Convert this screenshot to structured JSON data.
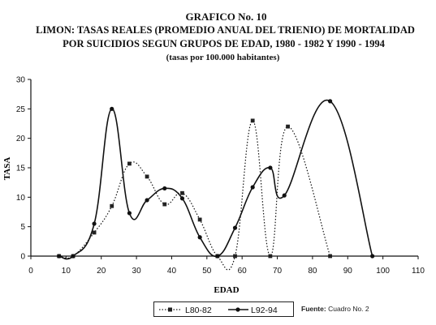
{
  "chart_data": {
    "type": "line",
    "title": "GRAFICO No. 10",
    "subtitle_line1": "LIMON: TASAS REALES (PROMEDIO ANUAL DEL TRIENIO) DE MORTALIDAD",
    "subtitle_line2": "POR SUICIDIOS SEGUN GRUPOS DE EDAD, 1980 - 1982 Y 1990 - 1994",
    "subtitle_line3": "(tasas por 100.000 habitantes)",
    "xlabel": "EDAD",
    "ylabel": "TASA",
    "xlim": [
      0,
      110
    ],
    "ylim": [
      0,
      30
    ],
    "xticks": [
      0,
      10,
      20,
      30,
      40,
      50,
      60,
      70,
      80,
      90,
      100,
      110
    ],
    "yticks": [
      0,
      5,
      10,
      15,
      20,
      25,
      30
    ],
    "grid": false,
    "legend_position": "bottom-center",
    "series": [
      {
        "name": "L80-82",
        "style": "dotted-square",
        "x": [
          8,
          12,
          18,
          23,
          28,
          33,
          38,
          43,
          48,
          53,
          58,
          63,
          68,
          73,
          85
        ],
        "y": [
          0,
          0,
          4,
          8.5,
          15.7,
          13.5,
          8.8,
          10.7,
          6.2,
          0,
          0,
          23,
          0,
          22,
          0
        ]
      },
      {
        "name": "L92-94",
        "style": "solid-circle",
        "x": [
          8,
          12,
          18,
          23,
          28,
          33,
          38,
          43,
          48,
          53,
          58,
          63,
          68,
          72,
          85,
          97
        ],
        "y": [
          0,
          0,
          5.5,
          25,
          7.3,
          9.5,
          11.5,
          9.8,
          3.2,
          0,
          4.8,
          11.7,
          15,
          10.3,
          26.3,
          0
        ]
      }
    ]
  },
  "source_note": {
    "label": "Fuente:",
    "text": "Cuadro No. 2"
  }
}
